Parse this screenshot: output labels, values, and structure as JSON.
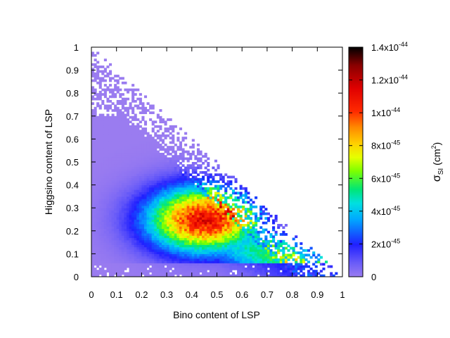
{
  "chart_data": {
    "type": "heatmap",
    "title": "",
    "xlabel": "Bino content of LSP",
    "ylabel": "Higgsino content of LSP",
    "xlim": [
      0,
      1
    ],
    "ylim": [
      0,
      1
    ],
    "x_ticks": [
      "0",
      "0.1",
      "0.2",
      "0.3",
      "0.4",
      "0.5",
      "0.6",
      "0.7",
      "0.8",
      "0.9",
      "1"
    ],
    "y_ticks": [
      "0",
      "0.1",
      "0.2",
      "0.3",
      "0.4",
      "0.5",
      "0.6",
      "0.7",
      "0.8",
      "0.9",
      "1"
    ],
    "grid": false,
    "colorbar": {
      "label_main": "σ",
      "label_sub": "SI",
      "label_unit": "(cm",
      "label_exp": "2",
      "label_close": ")",
      "range": [
        0,
        1.4e-44
      ],
      "ticks": [
        {
          "value": 0,
          "mantissa": "0",
          "exp": ""
        },
        {
          "value": 2e-45,
          "mantissa": "2x10",
          "exp": "-45"
        },
        {
          "value": 4e-45,
          "mantissa": "4x10",
          "exp": "-45"
        },
        {
          "value": 6e-45,
          "mantissa": "6x10",
          "exp": "-45"
        },
        {
          "value": 8e-45,
          "mantissa": "8x10",
          "exp": "-45"
        },
        {
          "value": 1e-44,
          "mantissa": "1x10",
          "exp": "-44"
        },
        {
          "value": 1.2e-44,
          "mantissa": "1.2x10",
          "exp": "-44"
        },
        {
          "value": 1.4e-44,
          "mantissa": "1.4x10",
          "exp": "-44"
        }
      ],
      "colors": [
        "#9a7cf0",
        "#2020ff",
        "#00c8ff",
        "#00e676",
        "#dcff00",
        "#ffd000",
        "#ff7a00",
        "#ff1a00",
        "#c80000",
        "#000000"
      ]
    },
    "region": "Points fill the triangle bino + higgsino <= 1; sigma_SI peaks (~1.1e-44) near bino≈0.45, higgsino≈0.25"
  }
}
